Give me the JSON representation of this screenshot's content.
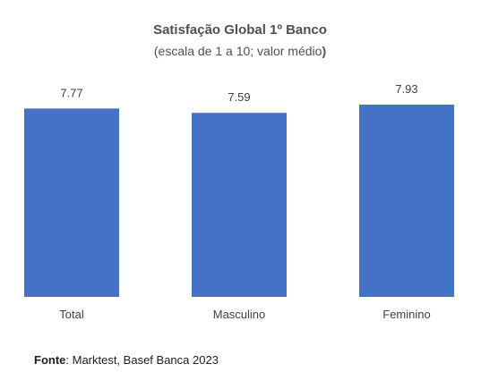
{
  "chart_data": {
    "type": "bar",
    "title": "Satisfação Global 1º Banco",
    "subtitle_main": "(escala de 1 a 10; valor médio",
    "subtitle_end": ")",
    "categories": [
      "Total",
      "Masculino",
      "Feminino"
    ],
    "values": [
      7.77,
      7.59,
      7.93
    ],
    "data_labels": [
      "7.77",
      "7.59",
      "7.93"
    ],
    "xlabel": "",
    "ylabel": "",
    "ylim": [
      0,
      7.93
    ],
    "grid": false,
    "legend": "none",
    "bar_color": "#4472C4"
  },
  "source": {
    "label": "Fonte",
    "text": ": Marktest, Basef Banca 2023"
  }
}
